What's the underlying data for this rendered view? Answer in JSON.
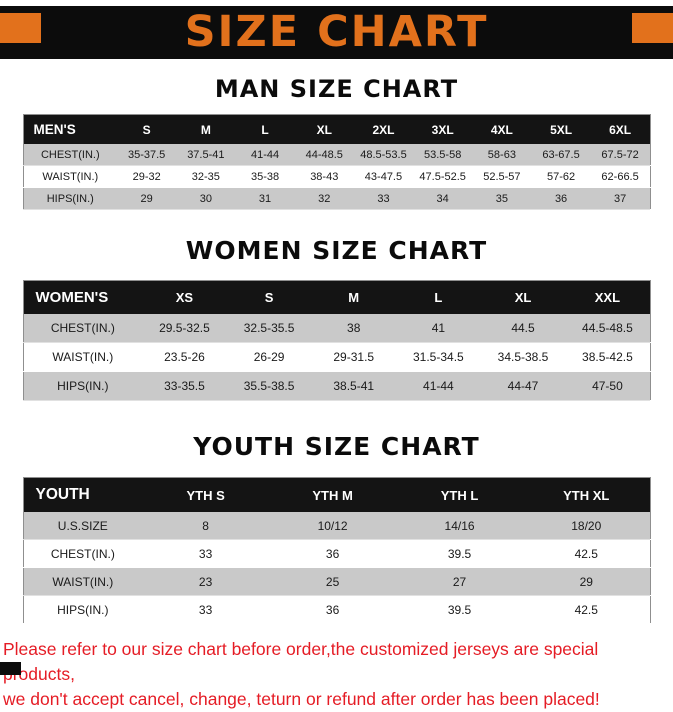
{
  "banner": {
    "title": "SIZE CHART"
  },
  "tables": {
    "men": {
      "section_title": "MAN SIZE CHART",
      "header": [
        "MEN'S",
        "S",
        "M",
        "L",
        "XL",
        "2XL",
        "3XL",
        "4XL",
        "5XL",
        "6XL"
      ],
      "rows": [
        [
          "CHEST(IN.)",
          "35-37.5",
          "37.5-41",
          "41-44",
          "44-48.5",
          "48.5-53.5",
          "53.5-58",
          "58-63",
          "63-67.5",
          "67.5-72"
        ],
        [
          "WAIST(IN.)",
          "29-32",
          "32-35",
          "35-38",
          "38-43",
          "43-47.5",
          "47.5-52.5",
          "52.5-57",
          "57-62",
          "62-66.5"
        ],
        [
          "HIPS(IN.)",
          "29",
          "30",
          "31",
          "32",
          "33",
          "34",
          "35",
          "36",
          "37"
        ]
      ]
    },
    "women": {
      "section_title": "WOMEN SIZE CHART",
      "header": [
        "WOMEN'S",
        "XS",
        "S",
        "M",
        "L",
        "XL",
        "XXL"
      ],
      "rows": [
        [
          "CHEST(IN.)",
          "29.5-32.5",
          "32.5-35.5",
          "38",
          "41",
          "44.5",
          "44.5-48.5"
        ],
        [
          "WAIST(IN.)",
          "23.5-26",
          "26-29",
          "29-31.5",
          "31.5-34.5",
          "34.5-38.5",
          "38.5-42.5"
        ],
        [
          "HIPS(IN.)",
          "33-35.5",
          "35.5-38.5",
          "38.5-41",
          "41-44",
          "44-47",
          "47-50"
        ]
      ]
    },
    "youth": {
      "section_title": "YOUTH SIZE CHART",
      "header": [
        "YOUTH",
        "YTH S",
        "YTH M",
        "YTH L",
        "YTH XL"
      ],
      "rows": [
        [
          "U.S.SIZE",
          "8",
          "10/12",
          "14/16",
          "18/20"
        ],
        [
          "CHEST(IN.)",
          "33",
          "36",
          "39.5",
          "42.5"
        ],
        [
          "WAIST(IN.)",
          "23",
          "25",
          "27",
          "29"
        ],
        [
          "HIPS(IN.)",
          "33",
          "36",
          "39.5",
          "42.5"
        ]
      ]
    }
  },
  "footer": {
    "line1": "Please refer to our size chart before order,the customized jerseys are special products,",
    "line2": "we don't accept cancel, change, teturn or refund after order has been placed!"
  },
  "colors": {
    "banner_bg": "#0c0c0c",
    "banner_text": "#e2711c",
    "accent_square": "#e2711c",
    "table_header_bg": "#141414",
    "table_header_text": "#ffffff",
    "row_alt_bg": "#c9c9c9",
    "row_bg": "#ffffff",
    "footer_text": "#e51c25"
  }
}
